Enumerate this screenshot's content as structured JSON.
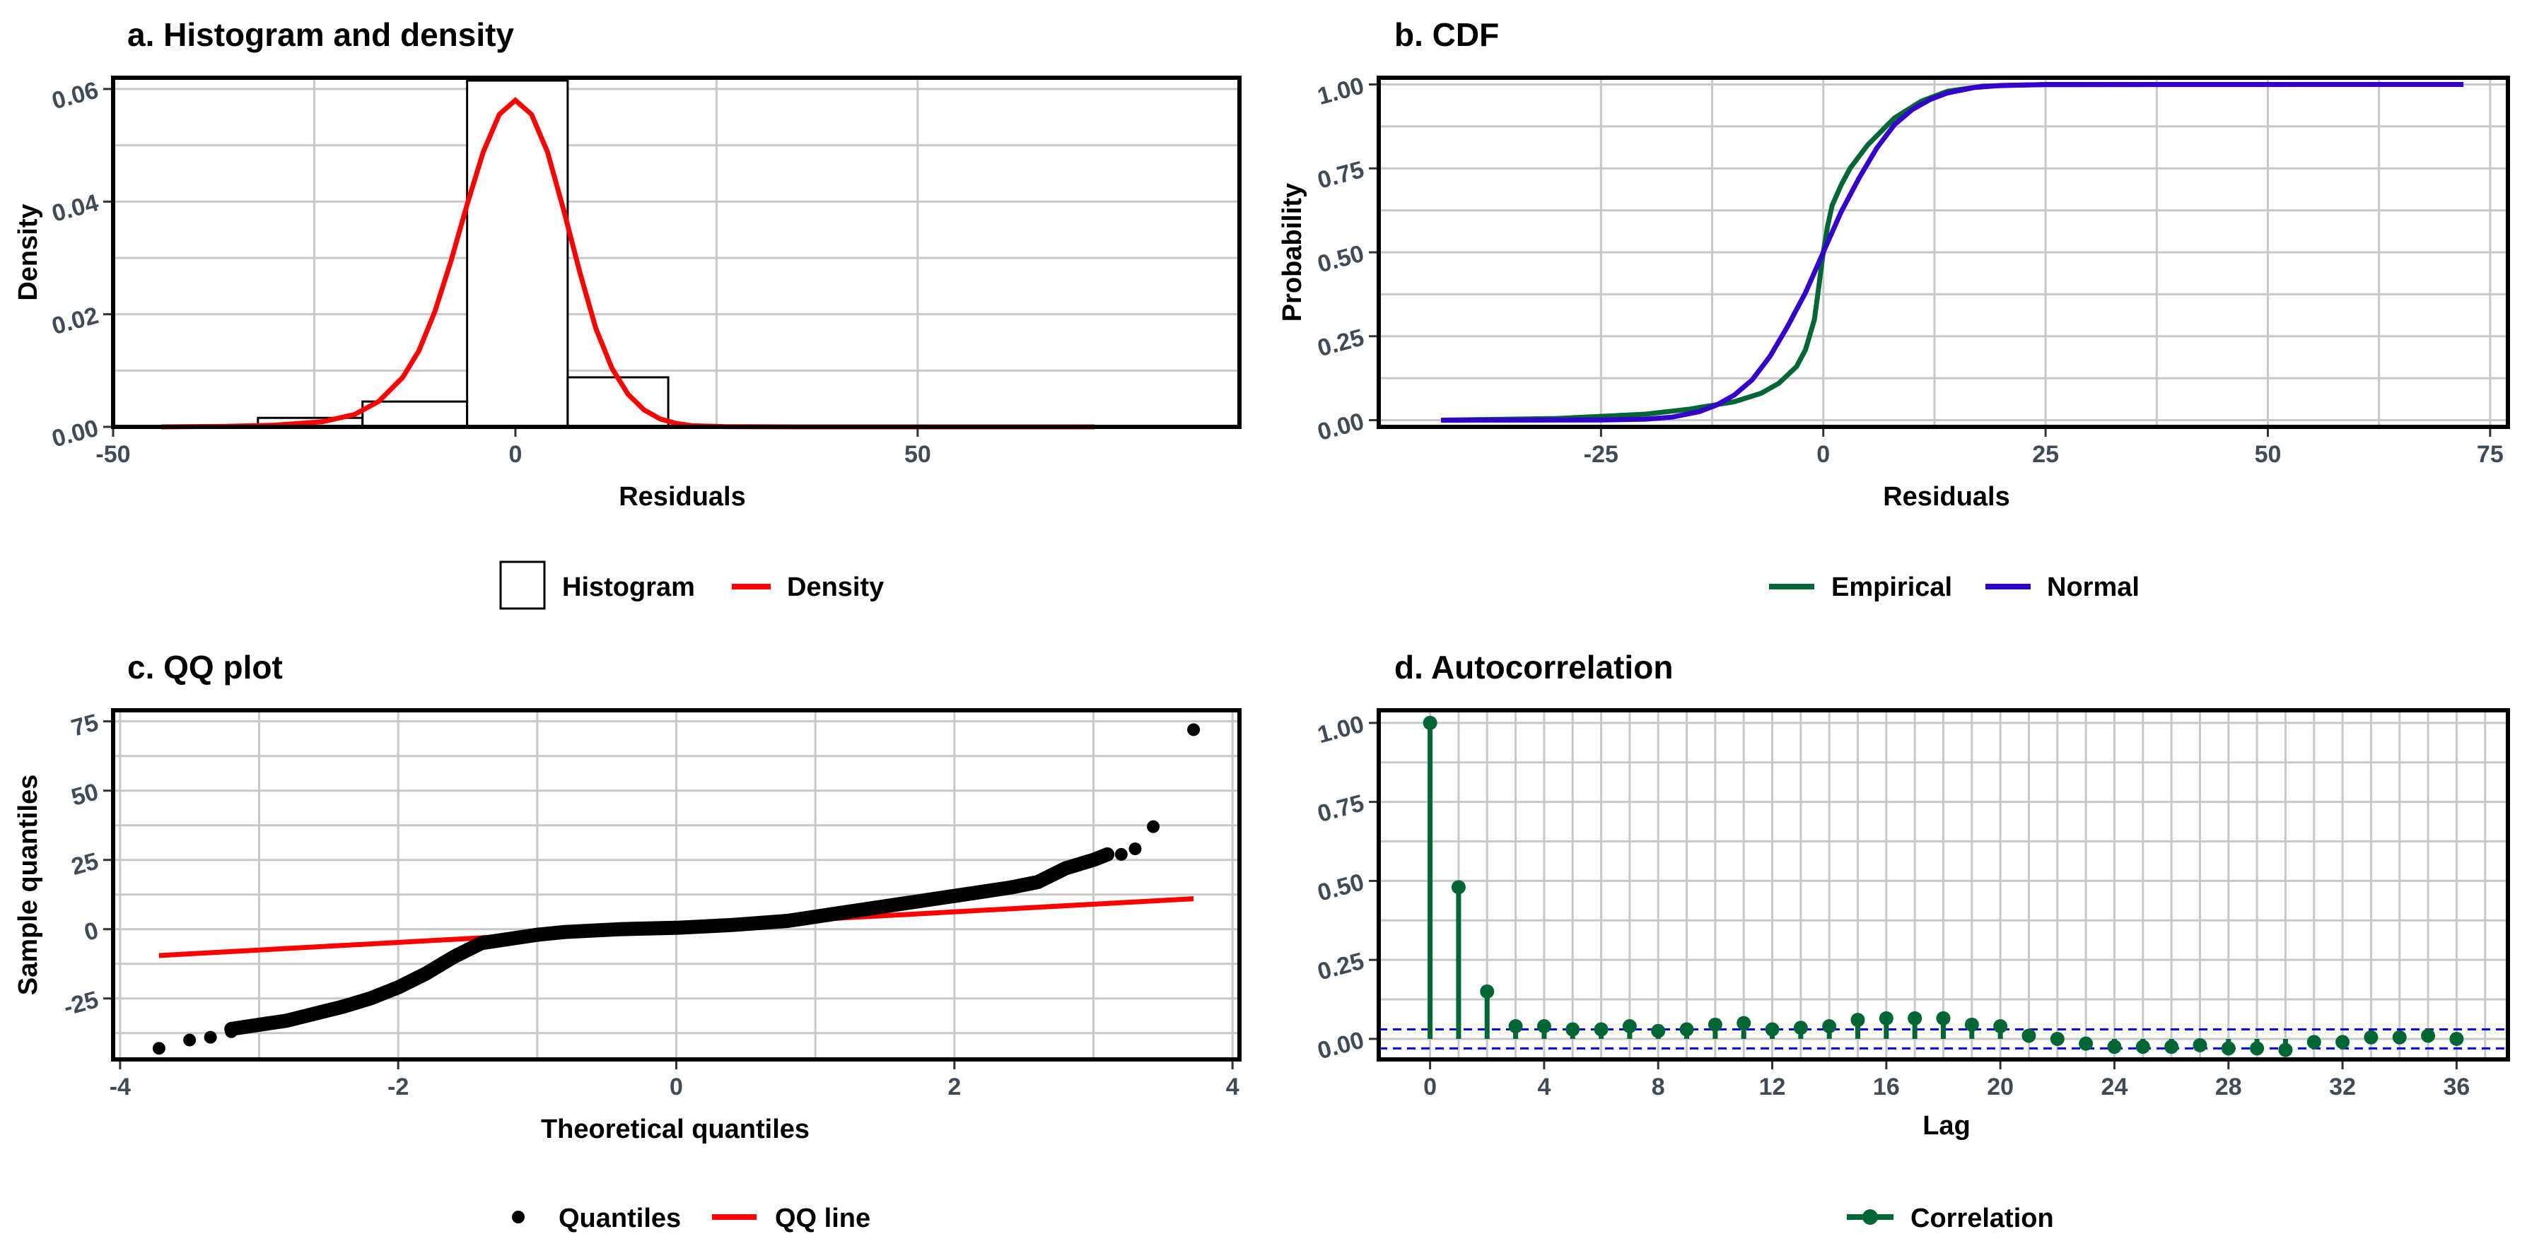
{
  "colors": {
    "density": "#ff0000",
    "empirical": "#006633",
    "normal": "#3300cc",
    "points": "#000000",
    "acf": "#006633",
    "conf": "#0000ff",
    "grid": "#c8c8c8"
  },
  "chart_data": [
    {
      "id": "a",
      "type": "bar",
      "title": "a. Histogram and density",
      "xlabel": "Residuals",
      "ylabel": "Density",
      "xlim": [
        -50,
        90
      ],
      "ylim": [
        0,
        0.062
      ],
      "xticks": [
        -50,
        0,
        50
      ],
      "xtick_labels": [
        "-50",
        "0",
        "50"
      ],
      "yticks": [
        0.0,
        0.02,
        0.04,
        0.06
      ],
      "ytick_labels": [
        "0.00",
        "0.02",
        "0.04",
        "0.06"
      ],
      "histogram": {
        "bins": [
          {
            "x0": -32,
            "x1": -19,
            "density": 0.0016
          },
          {
            "x0": -19,
            "x1": -6,
            "density": 0.0045
          },
          {
            "x0": -6,
            "x1": 6.5,
            "density": 0.0615
          },
          {
            "x0": 6.5,
            "x1": 19,
            "density": 0.0088
          },
          {
            "x0": 19,
            "x1": 83,
            "density": 0.0
          }
        ]
      },
      "density": {
        "x": [
          -44,
          -36,
          -30,
          -24,
          -20,
          -17,
          -14,
          -12,
          -10,
          -8,
          -6,
          -4,
          -2,
          0,
          2,
          4,
          6,
          8,
          10,
          12,
          14,
          16,
          18,
          20,
          22,
          26,
          35,
          50,
          72
        ],
        "y": [
          0,
          0.0001,
          0.0003,
          0.0009,
          0.0022,
          0.0045,
          0.0088,
          0.0135,
          0.0205,
          0.0295,
          0.0395,
          0.0488,
          0.0555,
          0.058,
          0.0555,
          0.0488,
          0.0385,
          0.0275,
          0.0175,
          0.0104,
          0.0058,
          0.003,
          0.0014,
          0.0006,
          0.0002,
          5e-05,
          0,
          0,
          0
        ]
      },
      "legend": [
        "Histogram",
        "Density"
      ]
    },
    {
      "id": "b",
      "type": "line",
      "title": "b. CDF",
      "xlabel": "Residuals",
      "ylabel": "Probability",
      "xlim": [
        -50,
        77
      ],
      "ylim": [
        -0.02,
        1.02
      ],
      "xticks": [
        -25,
        0,
        25,
        50,
        75
      ],
      "xtick_labels": [
        "-25",
        "0",
        "25",
        "50",
        "75"
      ],
      "yticks": [
        0.0,
        0.25,
        0.5,
        0.75,
        1.0
      ],
      "ytick_labels": [
        "0.00",
        "0.25",
        "0.50",
        "0.75",
        "1.00"
      ],
      "series": [
        {
          "name": "Empirical",
          "x": [
            -43,
            -30,
            -20,
            -15,
            -10,
            -7,
            -5,
            -3,
            -2,
            -1,
            -0.5,
            0,
            0.5,
            1,
            2,
            3,
            5,
            8,
            11,
            14,
            18,
            25,
            72
          ],
          "y": [
            0,
            0.005,
            0.018,
            0.033,
            0.055,
            0.08,
            0.11,
            0.16,
            0.21,
            0.3,
            0.4,
            0.5,
            0.58,
            0.64,
            0.7,
            0.75,
            0.82,
            0.9,
            0.95,
            0.98,
            0.995,
            1.0,
            1.0
          ]
        },
        {
          "name": "Normal",
          "x": [
            -43,
            -25,
            -20,
            -17,
            -14,
            -12,
            -10,
            -8,
            -6,
            -4,
            -2,
            0,
            2,
            4,
            6,
            8,
            10,
            12,
            14,
            17,
            20,
            25,
            72
          ],
          "y": [
            0,
            0.0005,
            0.003,
            0.009,
            0.025,
            0.045,
            0.075,
            0.12,
            0.19,
            0.28,
            0.38,
            0.5,
            0.62,
            0.72,
            0.81,
            0.88,
            0.925,
            0.955,
            0.975,
            0.991,
            0.997,
            0.9995,
            1.0
          ]
        }
      ],
      "legend": [
        "Empirical",
        "Normal"
      ]
    },
    {
      "id": "c",
      "type": "scatter",
      "title": "c. QQ plot",
      "xlabel": "Theoretical quantiles",
      "ylabel": "Sample quantiles",
      "xlim": [
        -4.05,
        4.05
      ],
      "ylim": [
        -47,
        79
      ],
      "xticks": [
        -4,
        -2,
        0,
        2,
        4
      ],
      "xtick_labels": [
        "-4",
        "-2",
        "0",
        "2",
        "4"
      ],
      "yticks": [
        -25,
        0,
        25,
        50,
        75
      ],
      "ytick_labels": [
        "-25",
        "0",
        "25",
        "50",
        "75"
      ],
      "quantile_curve": {
        "x": [
          -3.2,
          -2.8,
          -2.4,
          -2.2,
          -2.0,
          -1.8,
          -1.6,
          -1.4,
          -1.2,
          -1.0,
          -0.8,
          -0.4,
          0.0,
          0.4,
          0.8,
          1.2,
          1.6,
          2.0,
          2.4,
          2.6,
          2.8,
          3.0,
          3.1
        ],
        "y": [
          -36,
          -33,
          -28,
          -25,
          -21,
          -16,
          -10,
          -5,
          -3.5,
          -2,
          -1,
          0,
          0.5,
          1.5,
          3,
          6,
          9,
          12,
          15,
          17,
          22,
          25,
          27
        ]
      },
      "outliers": {
        "x": [
          -3.72,
          -3.5,
          -3.35,
          -3.2,
          3.2,
          3.3,
          3.43,
          3.72
        ],
        "y": [
          -43,
          -40,
          -39,
          -37,
          27,
          29,
          37,
          72
        ]
      },
      "qq_line": {
        "x": [
          -3.72,
          3.72
        ],
        "y": [
          -9.5,
          11
        ]
      },
      "legend": [
        "Quantiles",
        "QQ line"
      ]
    },
    {
      "id": "d",
      "type": "bar",
      "title": "d. Autocorrelation",
      "xlabel": "Lag",
      "ylabel": "",
      "xlim": [
        -1.8,
        37.8
      ],
      "ylim": [
        -0.065,
        1.04
      ],
      "xticks": [
        0,
        4,
        8,
        12,
        16,
        20,
        24,
        28,
        32,
        36
      ],
      "xtick_labels": [
        "0",
        "4",
        "8",
        "12",
        "16",
        "20",
        "24",
        "28",
        "32",
        "36"
      ],
      "yticks": [
        0.0,
        0.25,
        0.5,
        0.75,
        1.0
      ],
      "ytick_labels": [
        "0.00",
        "0.25",
        "0.50",
        "0.75",
        "1.00"
      ],
      "lags": [
        0,
        1,
        2,
        3,
        4,
        5,
        6,
        7,
        8,
        9,
        10,
        11,
        12,
        13,
        14,
        15,
        16,
        17,
        18,
        19,
        20,
        21,
        22,
        23,
        24,
        25,
        26,
        27,
        28,
        29,
        30,
        31,
        32,
        33,
        34,
        35,
        36
      ],
      "values": [
        1.0,
        0.48,
        0.15,
        0.04,
        0.04,
        0.03,
        0.03,
        0.04,
        0.025,
        0.03,
        0.045,
        0.05,
        0.03,
        0.035,
        0.04,
        0.06,
        0.065,
        0.065,
        0.065,
        0.045,
        0.04,
        0.01,
        0.0,
        -0.015,
        -0.025,
        -0.025,
        -0.025,
        -0.02,
        -0.03,
        -0.03,
        -0.035,
        -0.01,
        -0.01,
        0.005,
        0.005,
        0.01,
        0.0
      ],
      "conf_band": [
        0.03,
        -0.03
      ],
      "legend": [
        "Correlation"
      ]
    }
  ]
}
